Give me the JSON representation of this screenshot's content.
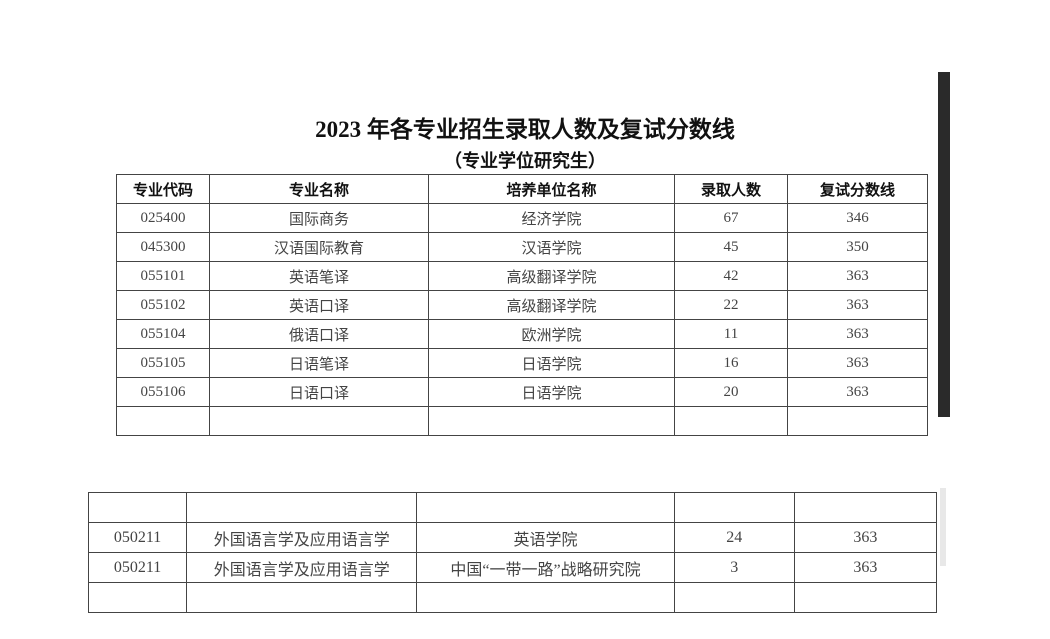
{
  "document": {
    "title": "2023 年各专业招生录取人数及复试分数线",
    "subtitle": "（专业学位研究生）",
    "table": {
      "headers": [
        "专业代码",
        "专业名称",
        "培养单位名称",
        "录取人数",
        "复试分数线"
      ],
      "rows": [
        [
          "025400",
          "国际商务",
          "经济学院",
          "67",
          "346"
        ],
        [
          "045300",
          "汉语国际教育",
          "汉语学院",
          "45",
          "350"
        ],
        [
          "055101",
          "英语笔译",
          "高级翻译学院",
          "42",
          "363"
        ],
        [
          "055102",
          "英语口译",
          "高级翻译学院",
          "22",
          "363"
        ],
        [
          "055104",
          "俄语口译",
          "欧洲学院",
          "11",
          "363"
        ],
        [
          "055105",
          "日语笔译",
          "日语学院",
          "16",
          "363"
        ],
        [
          "055106",
          "日语口译",
          "日语学院",
          "20",
          "363"
        ]
      ]
    },
    "table2": {
      "rows": [
        [
          "050211",
          "外国语言学及应用语言学",
          "英语学院",
          "24",
          "363"
        ],
        [
          "050211",
          "外国语言学及应用语言学",
          "中国“一带一路”战略研究院",
          "3",
          "363"
        ]
      ]
    }
  }
}
